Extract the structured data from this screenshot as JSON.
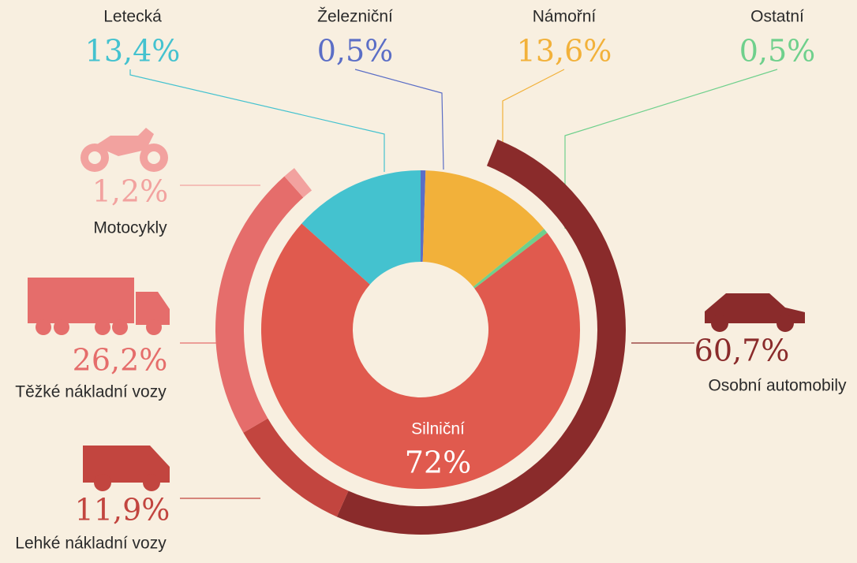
{
  "chart_data": {
    "type": "nested-donut",
    "rings": [
      {
        "categories": [
          "Železniční",
          "Námořní",
          "Ostatní",
          "Silniční",
          "Letecká"
        ],
        "values": [
          0.5,
          13.6,
          0.5,
          72,
          13.4
        ],
        "value_labels": [
          "0,5%",
          "13,6%",
          "0,5%",
          "72%",
          "13,4%"
        ],
        "colors": [
          "#5b6ec6",
          "#f2b13a",
          "#6fd08c",
          "#e05a4e",
          "#44c2cf"
        ]
      },
      {
        "categories": [
          "Osobní automobily",
          "Lehké nákladní vozy",
          "Těžké nákladní vozy",
          "Motocykly"
        ],
        "values": [
          60.7,
          11.9,
          26.2,
          1.2
        ],
        "value_labels": [
          "60,7%",
          "11,9%",
          "26,2%",
          "1,2%"
        ],
        "colors": [
          "#8a2b2b",
          "#c2453f",
          "#e56d6b",
          "#f2a29f"
        ]
      }
    ]
  }
}
